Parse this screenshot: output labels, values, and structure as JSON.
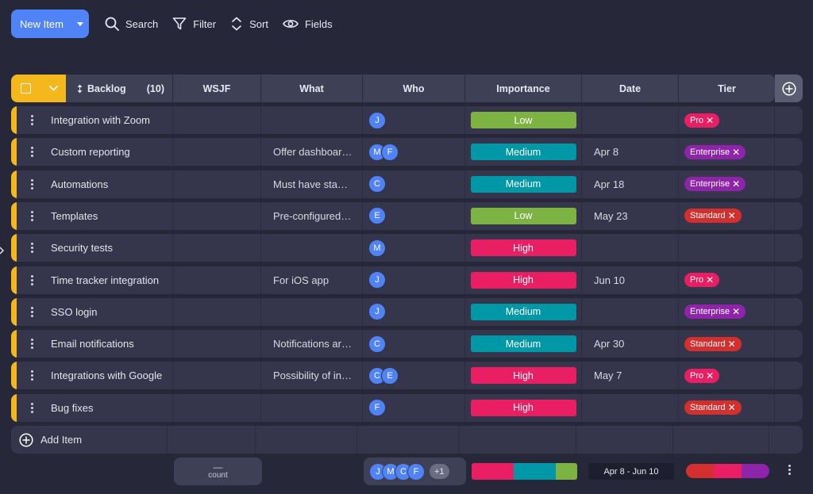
{
  "toolbar": {
    "new_item_label": "New Item",
    "search_label": "Search",
    "filter_label": "Filter",
    "sort_label": "Sort",
    "fields_label": "Fields"
  },
  "group": {
    "name": "Backlog",
    "count": "(10)"
  },
  "columns": {
    "wsjf": "WSJF",
    "what": "What",
    "who": "Who",
    "importance": "Importance",
    "date": "Date",
    "tier": "Tier"
  },
  "colors": {
    "accent": "#4f83f7",
    "group": "#f5b81c",
    "low": "#7cb342",
    "medium": "#0097a7",
    "high": "#e91e63",
    "pro": "#e91e63",
    "enterprise": "#8e24aa",
    "standard": "#d32f2f"
  },
  "rows": [
    {
      "name": "Integration with Zoom",
      "what": "",
      "who": [
        "J"
      ],
      "importance": "Low",
      "date": "",
      "tier": "Pro"
    },
    {
      "name": "Custom reporting",
      "what": "Offer dashboards",
      "who": [
        "M",
        "F"
      ],
      "importance": "Medium",
      "date": "Apr 8",
      "tier": "Enterprise"
    },
    {
      "name": "Automations",
      "what": "Must have stan…",
      "who": [
        "C"
      ],
      "importance": "Medium",
      "date": "Apr 18",
      "tier": "Enterprise"
    },
    {
      "name": "Templates",
      "what": "Pre-configured s…",
      "who": [
        "E"
      ],
      "importance": "Low",
      "date": "May 23",
      "tier": "Standard"
    },
    {
      "name": "Security tests",
      "what": "",
      "who": [
        "M"
      ],
      "importance": "High",
      "date": "",
      "tier": ""
    },
    {
      "name": "Time tracker integration",
      "what": "For iOS app",
      "who": [
        "J"
      ],
      "importance": "High",
      "date": "Jun 10",
      "tier": "Pro"
    },
    {
      "name": "SSO login",
      "what": "",
      "who": [
        "J"
      ],
      "importance": "Medium",
      "date": "",
      "tier": "Enterprise"
    },
    {
      "name": "Email notifications",
      "what": "Notifications are…",
      "who": [
        "C"
      ],
      "importance": "Medium",
      "date": "Apr 30",
      "tier": "Standard"
    },
    {
      "name": "Integrations with Google",
      "what": "Possibility of int…",
      "who": [
        "C",
        "E"
      ],
      "importance": "High",
      "date": "May 7",
      "tier": "Pro"
    },
    {
      "name": "Bug fixes",
      "what": "",
      "who": [
        "F"
      ],
      "importance": "High",
      "date": "",
      "tier": "Standard"
    }
  ],
  "add_item_label": "Add Item",
  "summary": {
    "count_dash": "—",
    "count_label": "count",
    "who_avatars": [
      "J",
      "M",
      "C",
      "F"
    ],
    "who_more": "+1",
    "importance_distribution": [
      {
        "label": "High",
        "fraction": 0.4
      },
      {
        "label": "Medium",
        "fraction": 0.4
      },
      {
        "label": "Low",
        "fraction": 0.2
      }
    ],
    "date_range": "Apr 8 - Jun 10",
    "tier_distribution": [
      {
        "label": "Standard",
        "fraction": 0.33
      },
      {
        "label": "Pro",
        "fraction": 0.34
      },
      {
        "label": "Enterprise",
        "fraction": 0.33
      }
    ]
  }
}
